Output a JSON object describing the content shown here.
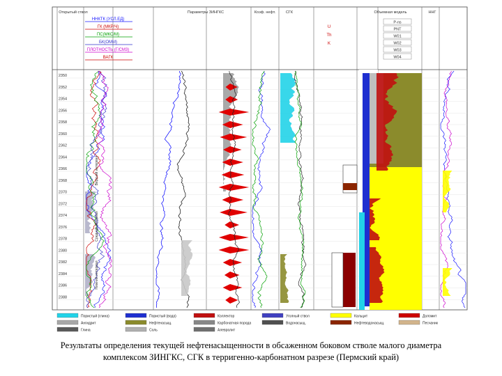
{
  "slide": {
    "caption_line1": "Результаты определения текущей нефтенасыщенности в обсаженном боковом стволе малого диаметра",
    "caption_line2": "комплексом ЗИНГКС, СГК в терригенно-карбонатном разрезе (Пермский край)"
  },
  "log": {
    "track_titles": [
      "Открытый ствол",
      "Параметры ЗИНГКС",
      "Коэф. нефт.",
      "СГК",
      "Объемная модель",
      "ННГ"
    ],
    "openhole_curves": [
      {
        "label": "ННКТК (УСЛ.ЕД)",
        "color": "#1a1aff"
      },
      {
        "label": "ГК (МКР/Ч)",
        "color": "#cc0000"
      },
      {
        "label": "ПС(МКС/М)",
        "color": "#00a000"
      },
      {
        "label": "БК(ОММ)",
        "color": "#3333cc"
      },
      {
        "label": "ПЛОТНОСТЬ (Г/СМ3)",
        "color": "#cc00cc"
      },
      {
        "label": "ВАГК",
        "color": "#cc0000"
      }
    ],
    "sgk_labels": [
      "U",
      "Th",
      "K"
    ],
    "model_labels": [
      "P-ns",
      "PNT",
      "W01",
      "W02",
      "W03",
      "W04"
    ],
    "depths": [
      "2350",
      "2352",
      "2354",
      "2356",
      "2358",
      "2360",
      "2362",
      "2364",
      "2366",
      "2368",
      "2370",
      "2372",
      "2374",
      "2376",
      "2378",
      "2380",
      "2382",
      "2384",
      "2386",
      "2388"
    ],
    "legend": [
      "Пористый (глина)",
      "Пористый (вода)",
      "Коллектор",
      "Уголный ствол",
      "Кальцит",
      "Доломит",
      "Ангидрит",
      "Нефтенасыщ.",
      "Карбонатная порода",
      "Водонасыщ.",
      "Нефтеводонасыщ.",
      "Песчаник",
      "Глина",
      "Соль",
      "Алевролит"
    ],
    "legend_colors": [
      "#22d3e8",
      "#1e2fd0",
      "#c01010",
      "#4040c0",
      "#ffff00",
      "#cc0000",
      "#a8a8a8",
      "#8b8b2c",
      "#888888",
      "#505050",
      "#8b2500",
      "#d2b48c",
      "#5a5a5a",
      "#b0b0b0",
      "#707070"
    ]
  }
}
